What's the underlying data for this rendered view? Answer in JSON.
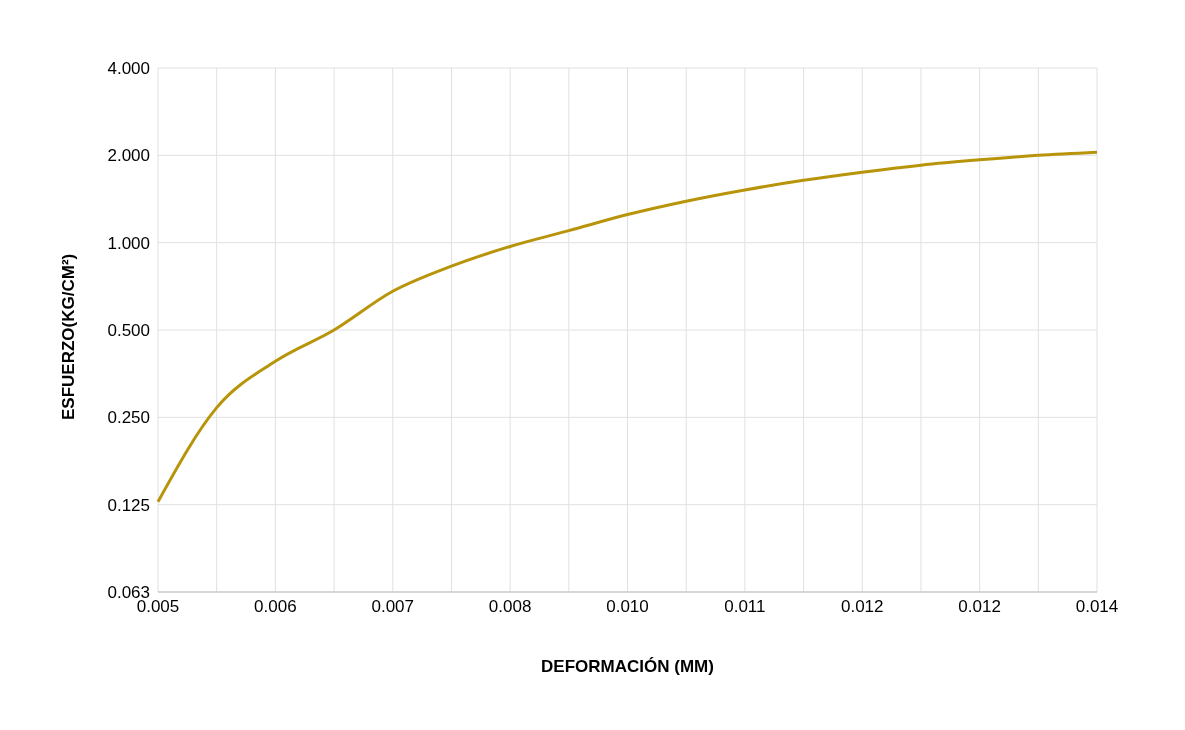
{
  "chart_data": {
    "type": "line",
    "xlabel": "DEFORMACIÓN (MM)",
    "ylabel": "ESFUERZO(KG/CM²)",
    "categories": [
      "0.005",
      null,
      "0.006",
      null,
      "0.007",
      null,
      "0.008",
      null,
      "0.010",
      null,
      "0.011",
      null,
      "0.012",
      null,
      "0.012",
      null,
      "0.014"
    ],
    "series": [
      {
        "color": "#b8940a",
        "values": [
          0.128,
          0.27,
          0.39,
          0.5,
          0.68,
          0.83,
          0.97,
          1.1,
          1.25,
          1.39,
          1.52,
          1.64,
          1.75,
          1.85,
          1.93,
          2.0,
          2.05
        ]
      }
    ],
    "log": "y",
    "ylim": [
      0.0625,
      4
    ],
    "yticks": [
      {
        "value": 0.0625,
        "label": "0.063"
      },
      0.125,
      {
        "value": 0.25,
        "label": "0.250"
      },
      {
        "value": 0.5,
        "label": "0.500"
      },
      {
        "value": 1,
        "label": "1.000"
      },
      {
        "value": 2,
        "label": "2.000"
      },
      {
        "value": 4,
        "label": "4.000"
      }
    ],
    "grid": true,
    "legend": false,
    "marker": "none",
    "line_style": "solid"
  }
}
